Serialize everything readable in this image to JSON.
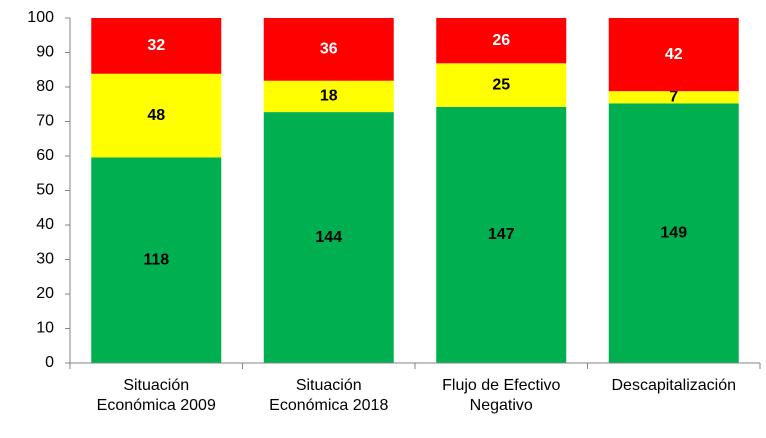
{
  "chart_data": {
    "type": "bar",
    "stack": "percent",
    "categories": [
      "Situación\nEconómica 2009",
      "Situación\nEconómica 2018",
      "Flujo de Efectivo\nNegativo",
      "Descapitalización"
    ],
    "series": [
      {
        "color": "#00b050",
        "label_color": "#000000",
        "values": [
          118,
          144,
          147,
          149
        ]
      },
      {
        "color": "#ffff00",
        "label_color": "#000000",
        "values": [
          48,
          18,
          25,
          7
        ]
      },
      {
        "color": "#ff0000",
        "label_color": "#ffffff",
        "values": [
          32,
          36,
          26,
          42
        ]
      }
    ],
    "ylim": [
      0,
      100
    ],
    "yticks": [
      0,
      10,
      20,
      30,
      40,
      50,
      60,
      70,
      80,
      90,
      100
    ],
    "grid": false
  }
}
